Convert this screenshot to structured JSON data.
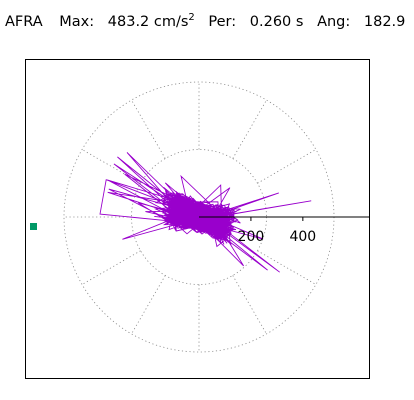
{
  "header": {
    "station": "AFRA",
    "max_label": "Max:",
    "max_value": "483.2 cm/s",
    "max_exp": "2",
    "per_label": "Per:",
    "per_value": "0.260 s",
    "ang_label": "Ang:",
    "ang_value": "182.9"
  },
  "chart_data": {
    "type": "polar-hodogram",
    "title": "AFRA  Max: 483.2 cm/s2  Per: 0.260 s  Ang: 182.9",
    "units": "cm/s2",
    "max_amplitude": 483.2,
    "period_s": 0.26,
    "angle_deg": 182.9,
    "radial_range": [
      0,
      520
    ],
    "radial_ticks": [
      200,
      400
    ],
    "radial_tick_labels": [
      "200",
      "400"
    ],
    "grid": "dotted rings and spokes every 30 degrees",
    "trace_color": "#9900cc",
    "axis_color": "#000000",
    "marker_color": "#009966"
  }
}
